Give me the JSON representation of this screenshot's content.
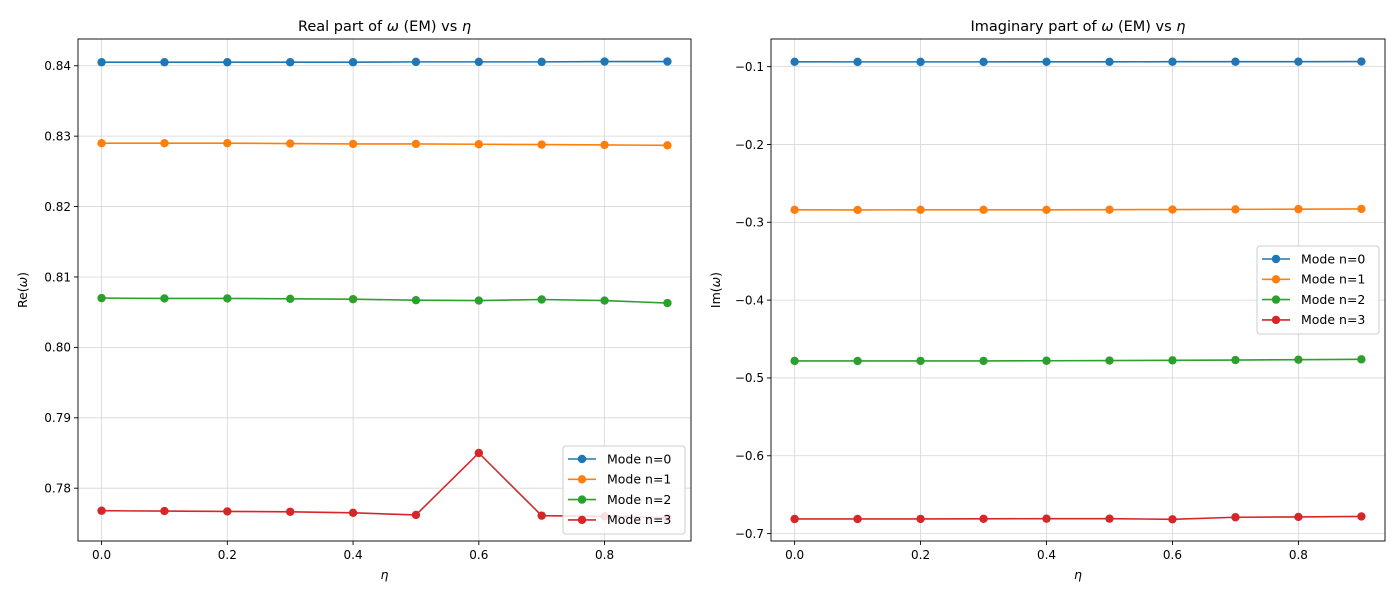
{
  "chart_data": [
    {
      "type": "line",
      "title_prefix": "Real part of ",
      "title_omega": "ω",
      "title_mid": " (EM) vs ",
      "title_eta": "η",
      "ylabel_prefix": "Re(",
      "ylabel_omega": "ω",
      "ylabel_suffix": ")",
      "xlabel": "η",
      "x": [
        0.0,
        0.1,
        0.2,
        0.3,
        0.4,
        0.5,
        0.6,
        0.7,
        0.8,
        0.9
      ],
      "xlim": [
        -0.0375,
        0.9375
      ],
      "ylim": [
        0.7725,
        0.8438
      ],
      "xticks": [
        0.0,
        0.2,
        0.4,
        0.6,
        0.8
      ],
      "xtick_labels": [
        "0.0",
        "0.2",
        "0.4",
        "0.6",
        "0.8"
      ],
      "yticks": [
        0.78,
        0.79,
        0.8,
        0.81,
        0.82,
        0.83,
        0.84
      ],
      "ytick_labels": [
        "0.78",
        "0.79",
        "0.80",
        "0.81",
        "0.82",
        "0.83",
        "0.84"
      ],
      "grid": true,
      "legend_position": "lower-right",
      "series": [
        {
          "name": "Mode n=0",
          "color": "#1f77b4",
          "values": [
            0.8405,
            0.8405,
            0.8405,
            0.8405,
            0.8405,
            0.84055,
            0.84055,
            0.84055,
            0.8406,
            0.8406
          ]
        },
        {
          "name": "Mode n=1",
          "color": "#ff7f0e",
          "values": [
            0.829,
            0.829,
            0.829,
            0.82895,
            0.8289,
            0.8289,
            0.82885,
            0.8288,
            0.82875,
            0.8287
          ]
        },
        {
          "name": "Mode n=2",
          "color": "#2ca02c",
          "values": [
            0.807,
            0.80695,
            0.80695,
            0.8069,
            0.80685,
            0.8067,
            0.80665,
            0.8068,
            0.80665,
            0.8063
          ]
        },
        {
          "name": "Mode n=3",
          "color": "#d62728",
          "values": [
            0.7768,
            0.77675,
            0.7767,
            0.77665,
            0.7765,
            0.7762,
            0.785,
            0.7761,
            0.776,
            0.7758
          ]
        }
      ]
    },
    {
      "type": "line",
      "title_prefix": "Imaginary part of ",
      "title_omega": "ω",
      "title_mid": " (EM) vs ",
      "title_eta": "η",
      "ylabel_prefix": "Im(",
      "ylabel_omega": "ω",
      "ylabel_suffix": ")",
      "xlabel": "η",
      "x": [
        0.0,
        0.1,
        0.2,
        0.3,
        0.4,
        0.5,
        0.6,
        0.7,
        0.8,
        0.9
      ],
      "xlim": [
        -0.0375,
        0.9375
      ],
      "ylim": [
        -0.7095,
        -0.0645
      ],
      "xticks": [
        0.0,
        0.2,
        0.4,
        0.6,
        0.8
      ],
      "xtick_labels": [
        "0.0",
        "0.2",
        "0.4",
        "0.6",
        "0.8"
      ],
      "yticks": [
        -0.7,
        -0.6,
        -0.5,
        -0.4,
        -0.3,
        -0.2,
        -0.1
      ],
      "ytick_labels": [
        "−0.7",
        "−0.6",
        "−0.5",
        "−0.4",
        "−0.3",
        "−0.2",
        "−0.1"
      ],
      "grid": true,
      "legend_position": "center-right",
      "series": [
        {
          "name": "Mode n=0",
          "color": "#1f77b4",
          "values": [
            -0.0938,
            -0.0939,
            -0.0939,
            -0.0939,
            -0.0938,
            -0.0938,
            -0.0937,
            -0.0937,
            -0.0936,
            -0.0935
          ]
        },
        {
          "name": "Mode n=1",
          "color": "#ff7f0e",
          "values": [
            -0.284,
            -0.2841,
            -0.284,
            -0.284,
            -0.284,
            -0.2838,
            -0.2836,
            -0.2834,
            -0.2831,
            -0.2828
          ]
        },
        {
          "name": "Mode n=2",
          "color": "#2ca02c",
          "values": [
            -0.4781,
            -0.4782,
            -0.4781,
            -0.4781,
            -0.4779,
            -0.4777,
            -0.4774,
            -0.477,
            -0.4765,
            -0.4761
          ]
        },
        {
          "name": "Mode n=3",
          "color": "#d62728",
          "values": [
            -0.6812,
            -0.6812,
            -0.6811,
            -0.681,
            -0.6808,
            -0.6808,
            -0.6816,
            -0.679,
            -0.6786,
            -0.678
          ]
        }
      ]
    }
  ]
}
